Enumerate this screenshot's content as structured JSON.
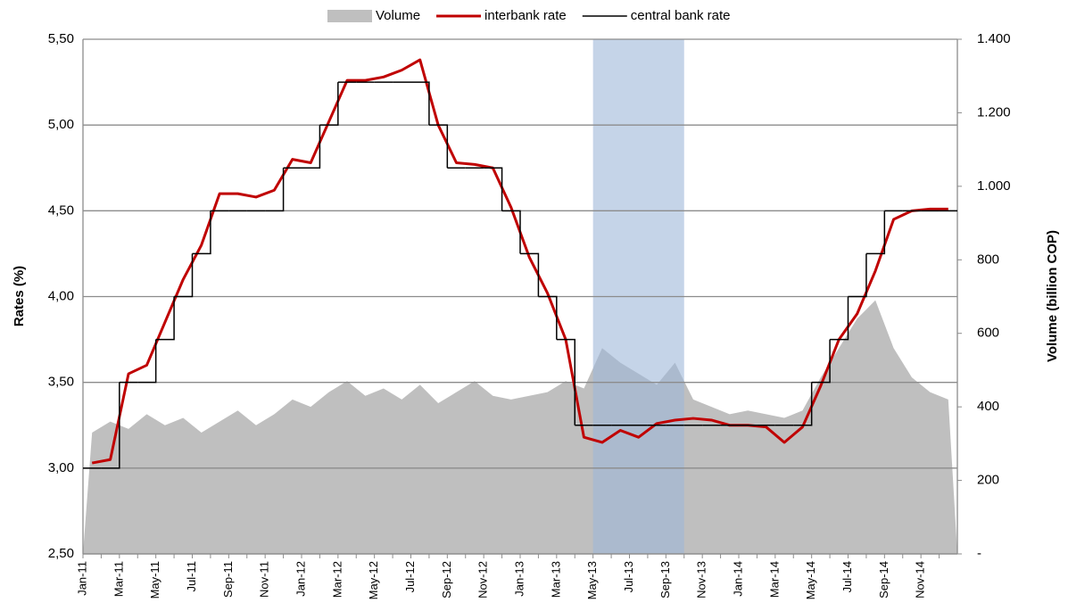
{
  "chart_data": {
    "type": "line",
    "categories": [
      "Jan-11",
      null,
      "Mar-11",
      null,
      "May-11",
      null,
      "Jul-11",
      null,
      "Sep-11",
      null,
      "Nov-11",
      null,
      "Jan-12",
      null,
      "Mar-12",
      null,
      "May-12",
      null,
      "Jul-12",
      null,
      "Sep-12",
      null,
      "Nov-12",
      null,
      "Jan-13",
      null,
      "Mar-13",
      null,
      "May-13",
      null,
      "Jul-13",
      null,
      "Sep-13",
      null,
      "Nov-13",
      null,
      "Jan-14",
      null,
      "Mar-14",
      null,
      "May-14",
      null,
      "Jul-14",
      null,
      "Sep-14",
      null,
      "Nov-14",
      null
    ],
    "series": [
      {
        "name": "Volume",
        "kind": "area",
        "axis": "y2",
        "color": "#bfbfbf",
        "values": [
          330,
          360,
          340,
          380,
          350,
          370,
          330,
          360,
          390,
          350,
          380,
          420,
          400,
          440,
          470,
          430,
          450,
          420,
          460,
          410,
          440,
          470,
          430,
          420,
          430,
          440,
          470,
          450,
          560,
          520,
          490,
          460,
          520,
          420,
          400,
          380,
          390,
          380,
          370,
          390,
          480,
          560,
          640,
          690,
          560,
          480,
          440,
          420
        ]
      },
      {
        "name": "interbank rate",
        "kind": "line",
        "axis": "y",
        "color": "#c00000",
        "values": [
          3.03,
          3.05,
          3.55,
          3.6,
          3.85,
          4.1,
          4.3,
          4.6,
          4.6,
          4.58,
          4.62,
          4.8,
          4.78,
          5.02,
          5.26,
          5.26,
          5.28,
          5.32,
          5.38,
          5.0,
          4.78,
          4.77,
          4.75,
          4.52,
          4.23,
          4.02,
          3.75,
          3.18,
          3.15,
          3.22,
          3.18,
          3.26,
          3.28,
          3.29,
          3.28,
          3.25,
          3.25,
          3.24,
          3.15,
          3.24,
          3.48,
          3.75,
          3.9,
          4.15,
          4.45,
          4.5,
          4.51,
          4.51
        ]
      },
      {
        "name": "central bank rate",
        "kind": "step",
        "axis": "y",
        "color": "#000000",
        "values": [
          3.0,
          3.0,
          3.5,
          3.5,
          3.75,
          4.0,
          4.25,
          4.5,
          4.5,
          4.5,
          4.5,
          4.75,
          4.75,
          5.0,
          5.25,
          5.25,
          5.25,
          5.25,
          5.25,
          5.0,
          4.75,
          4.75,
          4.75,
          4.5,
          4.25,
          4.0,
          3.75,
          3.25,
          3.25,
          3.25,
          3.25,
          3.25,
          3.25,
          3.25,
          3.25,
          3.25,
          3.25,
          3.25,
          3.25,
          3.25,
          3.5,
          3.75,
          4.0,
          4.25,
          4.5,
          4.5,
          4.5,
          4.5
        ]
      }
    ],
    "ylabel": "Rates (%)",
    "y2label": "Volume (billion COP)",
    "ylim": [
      2.5,
      5.5
    ],
    "yticks": [
      {
        "value": 2.5,
        "label": "2,50"
      },
      {
        "value": 3.0,
        "label": "3,00"
      },
      {
        "value": 3.5,
        "label": "3,50"
      },
      {
        "value": 4.0,
        "label": "4,00"
      },
      {
        "value": 4.5,
        "label": "4,50"
      },
      {
        "value": 5.0,
        "label": "5,00"
      },
      {
        "value": 5.5,
        "label": "5,50"
      }
    ],
    "y2lim": [
      0,
      1400
    ],
    "y2ticks": [
      {
        "value": 0,
        "label": "-"
      },
      200,
      400,
      600,
      800,
      {
        "value": 1000,
        "label": "1.000"
      },
      {
        "value": 1200,
        "label": "1.200"
      },
      {
        "value": 1400,
        "label": "1.400"
      }
    ],
    "highlight": [
      "May-13",
      "Sep-13"
    ],
    "highlight_color": "#9fb8d8",
    "grid": true,
    "legend": "top"
  }
}
